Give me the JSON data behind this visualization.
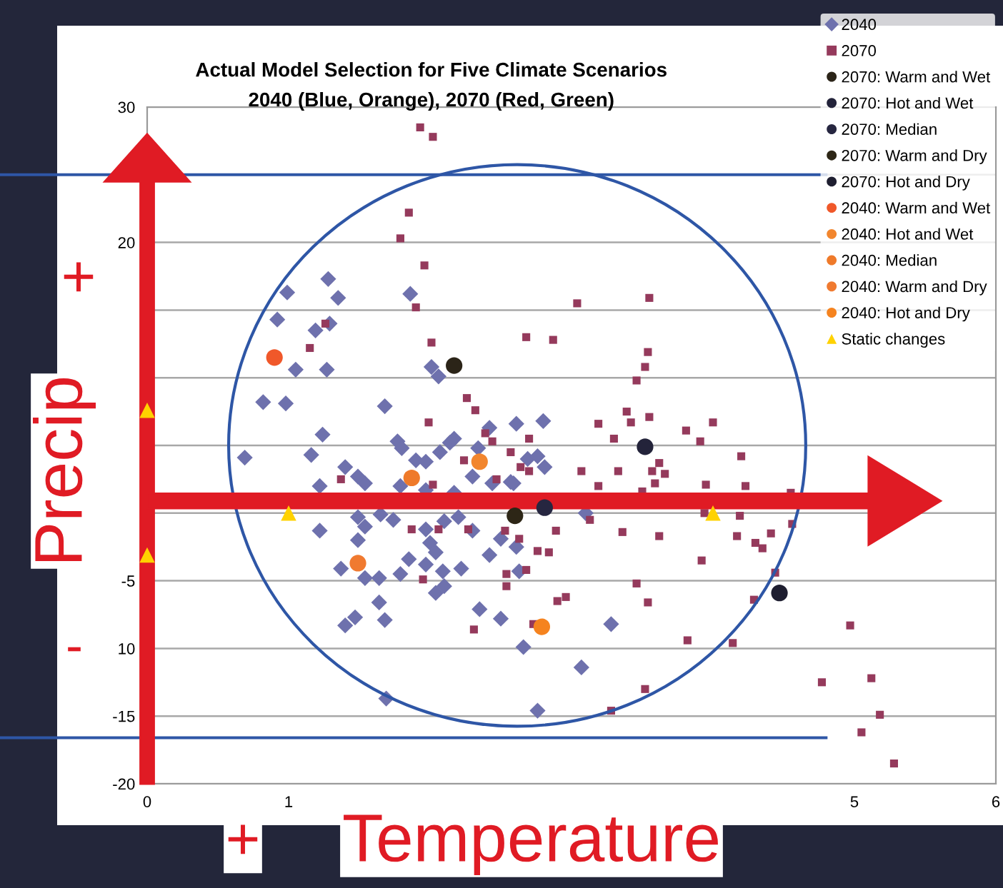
{
  "chart_data": {
    "type": "scatter",
    "title": "Actual Model Selection for Five Climate Scenarios",
    "subtitle": "2040 (Blue, Orange), 2070 (Red, Green)",
    "annotations": [
      "+",
      "Precip",
      "-",
      "+",
      "Temperature"
    ],
    "xlim": [
      0,
      6
    ],
    "xticks": [
      0,
      1,
      5,
      6
    ],
    "ylim": [
      -20,
      30
    ],
    "yticks": [
      -20,
      -15,
      {
        "value": -10,
        "label": "10"
      },
      -5,
      {
        "value": 0,
        "label": null
      },
      {
        "value": 5,
        "label": null
      },
      {
        "value": 10,
        "label": null
      },
      {
        "value": 15,
        "label": null
      },
      20,
      {
        "value": 25,
        "label": null
      },
      30
    ],
    "grid": "y",
    "legend": "top right",
    "ref_lines": [
      {
        "axis": "y",
        "value": 25,
        "color": "#2e56a6"
      },
      {
        "axis": "y",
        "value": -16.6,
        "color": "#2e56a6"
      }
    ],
    "series": [
      {
        "name": "2040",
        "color": "#6e71ad",
        "marker": "diamond",
        "x": [
          1.28,
          0.99,
          1.35,
          1.86,
          0.92,
          1.19,
          1.29,
          1.05,
          1.27,
          2.01,
          2.06,
          0.82,
          0.98,
          1.68,
          2.61,
          2.42,
          2.8,
          2.69,
          2.76,
          2.81,
          2.59,
          3.1,
          2.61,
          2.63,
          3.28,
          2.66,
          3.07,
          2.76,
          1.24,
          0.69,
          1.16,
          1.77,
          1.4,
          1.8,
          2.07,
          2.14,
          1.9,
          1.97,
          2.17,
          2.34,
          1.22,
          1.54,
          1.49,
          1.79,
          1.97,
          2.17,
          2.3,
          2.44,
          2.57,
          1.49,
          1.65,
          1.74,
          1.54,
          1.22,
          1.49,
          1.97,
          2.2,
          2.1,
          2.3,
          2.0,
          2.04,
          1.85,
          2.42,
          2.5,
          1.37,
          1.54,
          1.64,
          1.79,
          1.97,
          2.09,
          2.22,
          2.04,
          2.1,
          1.64,
          1.47,
          1.4,
          1.68,
          2.35,
          2.5,
          1.69
        ],
        "values": [
          17.3,
          16.3,
          15.9,
          16.2,
          14.3,
          13.5,
          14.0,
          10.6,
          10.6,
          10.8,
          10.1,
          8.2,
          8.1,
          7.9,
          6.6,
          6.3,
          6.8,
          4.0,
          4.2,
          3.4,
          2.2,
          0.0,
          -2.5,
          -4.3,
          -8.2,
          -9.9,
          -11.4,
          -14.6,
          5.8,
          4.1,
          4.3,
          5.3,
          3.4,
          4.8,
          4.5,
          5.2,
          3.9,
          3.8,
          5.5,
          4.8,
          2.0,
          2.2,
          2.7,
          2.0,
          1.7,
          1.5,
          2.7,
          2.2,
          2.3,
          -0.3,
          -0.1,
          -0.5,
          -1.0,
          -1.3,
          -2.0,
          -1.2,
          -0.3,
          -0.6,
          -1.3,
          -2.2,
          -2.9,
          -3.4,
          -3.1,
          -1.9,
          -4.1,
          -4.8,
          -4.8,
          -4.5,
          -3.8,
          -4.3,
          -4.1,
          -5.9,
          -5.4,
          -6.6,
          -7.7,
          -8.3,
          -7.9,
          -7.1,
          -7.8,
          -13.7
        ]
      },
      {
        "name": "2070",
        "color": "#953a5c",
        "marker": "square",
        "x": [
          1.93,
          2.02,
          1.85,
          1.79,
          1.96,
          1.9,
          1.26,
          1.15,
          2.01,
          2.68,
          2.26,
          2.32,
          1.99,
          3.04,
          3.55,
          2.87,
          3.54,
          3.52,
          3.46,
          3.39,
          3.42,
          3.55,
          4.0,
          3.19,
          3.3,
          2.7,
          3.81,
          3.91,
          4.2,
          3.62,
          3.57,
          3.66,
          3.33,
          3.07,
          3.59,
          3.19,
          3.95,
          4.23,
          3.5,
          4.55,
          3.94,
          4.19,
          3.13,
          2.89,
          3.36,
          4.56,
          4.41,
          3.62,
          4.17,
          4.3,
          4.35,
          2.76,
          2.84,
          2.63,
          3.92,
          2.68,
          4.44,
          3.46,
          2.9,
          2.96,
          3.54,
          4.29,
          2.73,
          4.97,
          3.82,
          4.14,
          4.77,
          5.12,
          3.52,
          5.18,
          5.05,
          3.28,
          5.28,
          2.24,
          1.37,
          2.02,
          1.87,
          2.06,
          2.27,
          1.95,
          2.31,
          2.39,
          2.44,
          2.57,
          2.47,
          2.53,
          2.54,
          2.54,
          2.64,
          2.7
        ],
        "values": [
          28.5,
          27.8,
          22.2,
          20.3,
          18.3,
          15.2,
          14.0,
          12.2,
          12.6,
          13.0,
          8.5,
          7.6,
          6.7,
          15.5,
          15.9,
          12.8,
          11.9,
          10.8,
          9.8,
          7.5,
          6.7,
          7.1,
          6.7,
          6.6,
          5.5,
          5.5,
          6.1,
          5.3,
          4.2,
          3.7,
          3.1,
          2.9,
          3.1,
          3.1,
          2.2,
          2.0,
          2.1,
          2.0,
          1.6,
          1.5,
          0.0,
          -0.2,
          -0.5,
          -1.3,
          -1.4,
          -0.8,
          -1.5,
          -1.7,
          -1.7,
          -2.2,
          -2.6,
          -2.8,
          -2.9,
          -1.9,
          -3.5,
          -4.2,
          -4.4,
          -5.2,
          -6.5,
          -6.2,
          -6.6,
          -6.4,
          -8.2,
          -8.3,
          -9.4,
          -9.6,
          -12.5,
          -12.2,
          -13.0,
          -14.9,
          -16.2,
          -14.6,
          -18.5,
          3.9,
          2.5,
          2.1,
          -1.2,
          -1.2,
          -1.2,
          -4.9,
          -8.6,
          5.9,
          5.3,
          4.5,
          2.5,
          -1.3,
          -4.5,
          -5.4,
          3.4,
          3.1
        ]
      },
      {
        "name": "2070: Warm and Wet",
        "color": "#2b2418",
        "marker": "circle",
        "x": [
          2.17
        ],
        "values": [
          10.9
        ]
      },
      {
        "name": "2070: Hot and Wet",
        "color": "#23233a",
        "marker": "circle",
        "x": [
          3.52
        ],
        "values": [
          4.9
        ]
      },
      {
        "name": "2070: Median",
        "color": "#262640",
        "marker": "circle",
        "x": [
          2.81
        ],
        "values": [
          0.4
        ]
      },
      {
        "name": "2070: Warm and Dry",
        "color": "#2d2616",
        "marker": "circle",
        "x": [
          2.6
        ],
        "values": [
          -0.2
        ]
      },
      {
        "name": "2070: Hot and Dry",
        "color": "#1e1e30",
        "marker": "circle",
        "x": [
          4.47
        ],
        "values": [
          -5.9
        ]
      },
      {
        "name": "2040: Warm and Wet",
        "color": "#f0582a",
        "marker": "circle",
        "x": [
          0.9
        ],
        "values": [
          11.5
        ]
      },
      {
        "name": "2040: Hot and Wet",
        "color": "#f2862e",
        "marker": "circle",
        "x": [
          2.35
        ],
        "values": [
          3.8
        ]
      },
      {
        "name": "2040: Median",
        "color": "#ef7a2a",
        "marker": "circle",
        "x": [
          1.87
        ],
        "values": [
          2.6
        ]
      },
      {
        "name": "2040: Warm and Dry",
        "color": "#f07a30",
        "marker": "circle",
        "x": [
          1.49
        ],
        "values": [
          -3.7
        ]
      },
      {
        "name": "2040: Hot and Dry",
        "color": "#f5831f",
        "marker": "circle",
        "x": [
          2.79
        ],
        "values": [
          -8.4
        ]
      },
      {
        "name": "Static changes",
        "color": "#ffd200",
        "marker": "triangle",
        "x": [
          0,
          0,
          1,
          4
        ],
        "values": [
          7.6,
          -3.1,
          0,
          0
        ]
      }
    ]
  }
}
